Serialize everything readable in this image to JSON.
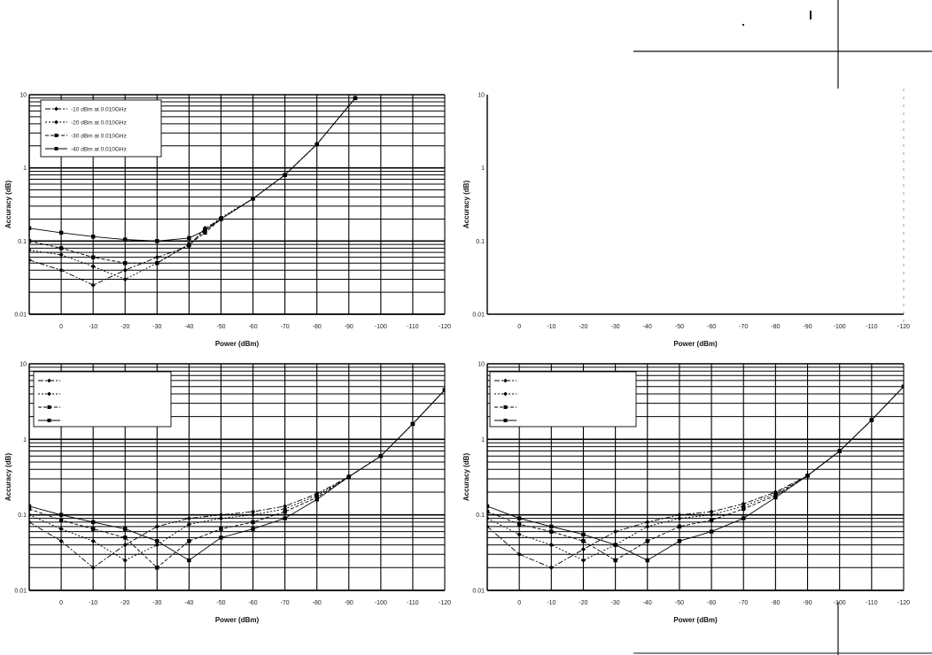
{
  "chart_data": [
    {
      "type": "line",
      "xlabel": "Power (dBm)",
      "ylabel": "Accuracy (dB)",
      "x_ticks": [
        "0",
        "-10",
        "-20",
        "-30",
        "-40",
        "-50",
        "-60",
        "-70",
        "-80",
        "-90",
        "-100",
        "-110",
        "-120"
      ],
      "y_ticks": [
        "0.01",
        "0.1",
        "1",
        "10"
      ],
      "xlim": [
        10,
        -120
      ],
      "ylim": [
        0.01,
        10
      ],
      "y_scale": "log",
      "grid": true,
      "legend": "top-left",
      "series": [
        {
          "name": "-10 dBm at 0.010GHz",
          "marker": "diamond",
          "dash": "6,2,2,2",
          "x": [
            10,
            0,
            -10,
            -20,
            -30,
            -40,
            -45,
            -50,
            -60,
            -70,
            -80,
            -92
          ],
          "y": [
            0.055,
            0.04,
            0.025,
            0.04,
            0.06,
            0.085,
            0.15,
            0.2,
            0.38,
            0.8,
            2.1,
            9
          ]
        },
        {
          "name": "-20 dBm at 0.010GHz",
          "marker": "diamond",
          "dash": "2,2",
          "x": [
            10,
            0,
            -10,
            -20,
            -30,
            -40,
            -45,
            -50,
            -60,
            -70,
            -80,
            -92
          ],
          "y": [
            0.075,
            0.065,
            0.045,
            0.03,
            0.05,
            0.09,
            0.14,
            0.21,
            0.38,
            0.8,
            2.1,
            9
          ]
        },
        {
          "name": "-30 dBm at 0.010GHz",
          "marker": "square",
          "dash": "4,2",
          "x": [
            10,
            0,
            -10,
            -20,
            -30,
            -40,
            -45,
            -50,
            -60,
            -70,
            -80,
            -92
          ],
          "y": [
            0.1,
            0.08,
            0.06,
            0.05,
            0.05,
            0.09,
            0.13,
            0.2,
            0.38,
            0.8,
            2.1,
            9
          ]
        },
        {
          "name": "-40 dBm at 0.010GHz",
          "marker": "square",
          "dash": "",
          "x": [
            10,
            0,
            -10,
            -20,
            -30,
            -40,
            -45,
            -50,
            -60,
            -70,
            -80,
            -92
          ],
          "y": [
            0.15,
            0.13,
            0.115,
            0.105,
            0.1,
            0.11,
            0.14,
            0.2,
            0.38,
            0.8,
            2.1,
            9
          ]
        }
      ]
    },
    {
      "type": "line",
      "xlabel": "Power (dBm)",
      "ylabel": "Accuracy (dB)",
      "x_ticks": [
        "0",
        "-10",
        "-20",
        "-30",
        "-40",
        "-50",
        "-60",
        "-70",
        "-80",
        "-90",
        "-100",
        "-110",
        "-120"
      ],
      "y_ticks": [
        "0.01",
        "0.1",
        "1",
        "10"
      ],
      "xlim": [
        10,
        -120
      ],
      "ylim": [
        0.01,
        10
      ],
      "y_scale": "log",
      "grid": false,
      "series": []
    },
    {
      "type": "line",
      "xlabel": "Power (dBm)",
      "ylabel": "Accuracy (dB)",
      "x_ticks": [
        "0",
        "-10",
        "-20",
        "-30",
        "-40",
        "-50",
        "-60",
        "-70",
        "-80",
        "-90",
        "-100",
        "-110",
        "-120"
      ],
      "y_ticks": [
        "0.01",
        "0.1",
        "1",
        "10"
      ],
      "xlim": [
        10,
        -120
      ],
      "ylim": [
        0.01,
        10
      ],
      "y_scale": "log",
      "grid": true,
      "legend": "top-left",
      "series": [
        {
          "marker": "diamond",
          "dash": "6,2,2,2",
          "x": [
            10,
            0,
            -10,
            -20,
            -30,
            -40,
            -50,
            -60,
            -70,
            -80,
            -90,
            -100,
            -110,
            -120
          ],
          "y": [
            0.08,
            0.045,
            0.02,
            0.04,
            0.07,
            0.09,
            0.1,
            0.11,
            0.13,
            0.19,
            0.32,
            0.6,
            1.6,
            4.5
          ]
        },
        {
          "marker": "diamond",
          "dash": "2,2",
          "x": [
            10,
            0,
            -10,
            -20,
            -30,
            -40,
            -50,
            -60,
            -70,
            -80,
            -90,
            -100,
            -110,
            -120
          ],
          "y": [
            0.1,
            0.065,
            0.045,
            0.025,
            0.04,
            0.075,
            0.09,
            0.1,
            0.12,
            0.18,
            0.32,
            0.6,
            1.6,
            4.5
          ]
        },
        {
          "marker": "square",
          "dash": "4,2",
          "x": [
            10,
            0,
            -10,
            -20,
            -30,
            -40,
            -50,
            -60,
            -70,
            -80,
            -90,
            -100,
            -110,
            -120
          ],
          "y": [
            0.12,
            0.085,
            0.065,
            0.05,
            0.02,
            0.045,
            0.065,
            0.08,
            0.11,
            0.17,
            0.32,
            0.6,
            1.6,
            4.5
          ]
        },
        {
          "marker": "square",
          "dash": "",
          "x": [
            10,
            0,
            -10,
            -20,
            -30,
            -40,
            -50,
            -60,
            -70,
            -80,
            -90,
            -100,
            -110,
            -120
          ],
          "y": [
            0.13,
            0.1,
            0.08,
            0.065,
            0.045,
            0.025,
            0.05,
            0.065,
            0.09,
            0.16,
            0.32,
            0.6,
            1.6,
            4.5
          ]
        }
      ]
    },
    {
      "type": "line",
      "xlabel": "Power (dBm)",
      "ylabel": "Accuracy (dB)",
      "x_ticks": [
        "0",
        "-10",
        "-20",
        "-30",
        "-40",
        "-50",
        "-60",
        "-70",
        "-80",
        "-90",
        "-100",
        "-110",
        "-120"
      ],
      "y_ticks": [
        "0.01",
        "0.1",
        "1",
        "10"
      ],
      "xlim": [
        10,
        -120
      ],
      "ylim": [
        0.01,
        10
      ],
      "y_scale": "log",
      "grid": true,
      "legend": "top-left",
      "series": [
        {
          "marker": "diamond",
          "dash": "6,2,2,2",
          "x": [
            10,
            0,
            -10,
            -20,
            -30,
            -40,
            -50,
            -60,
            -70,
            -80,
            -90,
            -100,
            -110,
            -120
          ],
          "y": [
            0.07,
            0.03,
            0.02,
            0.035,
            0.06,
            0.08,
            0.1,
            0.11,
            0.14,
            0.2,
            0.33,
            0.7,
            1.8,
            5
          ]
        },
        {
          "marker": "diamond",
          "dash": "2,2",
          "x": [
            10,
            0,
            -10,
            -20,
            -30,
            -40,
            -50,
            -60,
            -70,
            -80,
            -90,
            -100,
            -110,
            -120
          ],
          "y": [
            0.09,
            0.055,
            0.04,
            0.025,
            0.04,
            0.07,
            0.09,
            0.1,
            0.13,
            0.19,
            0.33,
            0.7,
            1.8,
            5
          ]
        },
        {
          "marker": "square",
          "dash": "4,2",
          "x": [
            10,
            0,
            -10,
            -20,
            -30,
            -40,
            -50,
            -60,
            -70,
            -80,
            -90,
            -100,
            -110,
            -120
          ],
          "y": [
            0.11,
            0.075,
            0.06,
            0.045,
            0.025,
            0.045,
            0.07,
            0.085,
            0.12,
            0.18,
            0.33,
            0.7,
            1.8,
            5
          ]
        },
        {
          "marker": "square",
          "dash": "",
          "x": [
            10,
            0,
            -10,
            -20,
            -30,
            -40,
            -50,
            -60,
            -70,
            -80,
            -90,
            -100,
            -110,
            -120
          ],
          "y": [
            0.13,
            0.09,
            0.07,
            0.055,
            0.04,
            0.025,
            0.045,
            0.06,
            0.09,
            0.17,
            0.33,
            0.7,
            1.8,
            5
          ]
        }
      ]
    }
  ]
}
